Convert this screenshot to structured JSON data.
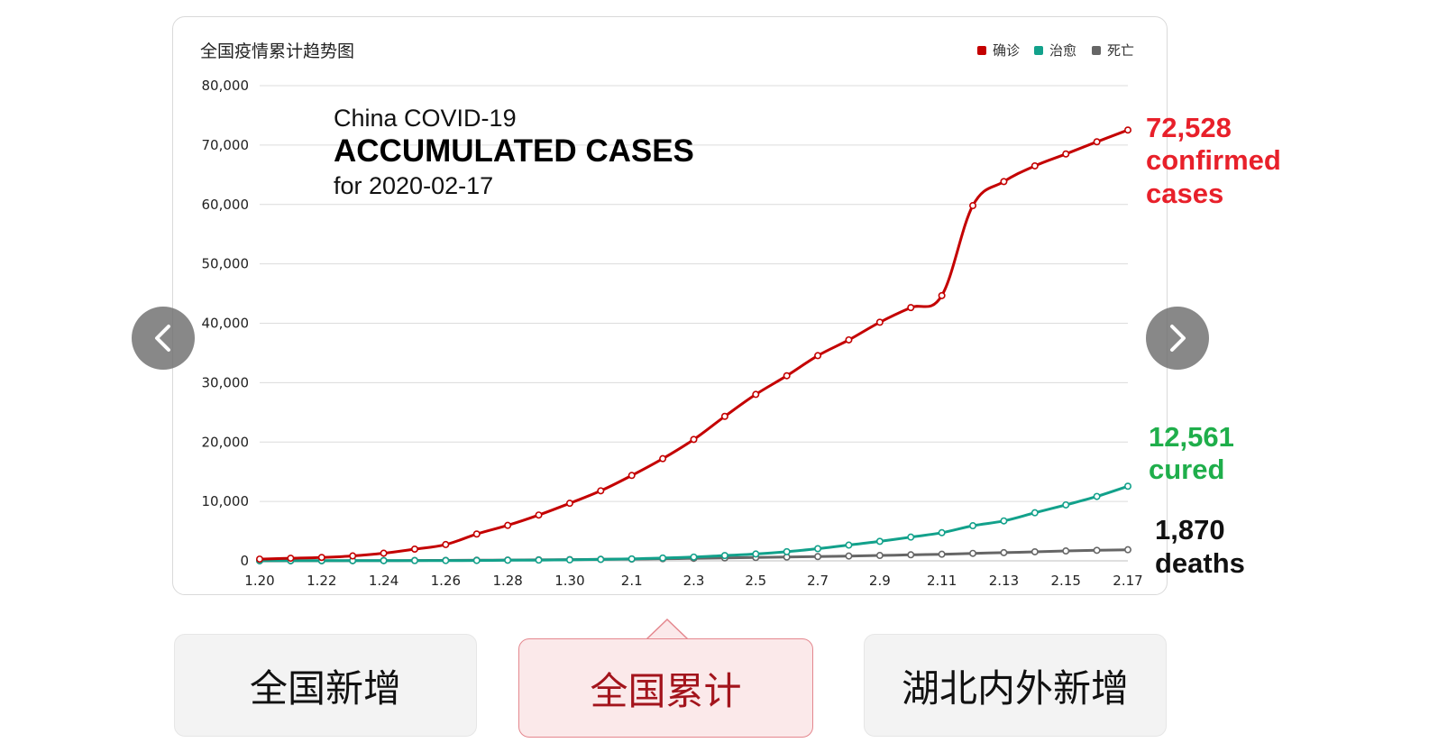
{
  "chart_data": {
    "type": "line",
    "title": "全国疫情累计趋势图",
    "overlay": {
      "line1": "China COVID-19",
      "line2": "ACCUMULATED CASES",
      "line3": "for 2020-02-17"
    },
    "x": [
      "1.20",
      "1.21",
      "1.22",
      "1.23",
      "1.24",
      "1.25",
      "1.26",
      "1.27",
      "1.28",
      "1.29",
      "1.30",
      "1.31",
      "2.1",
      "2.2",
      "2.3",
      "2.4",
      "2.5",
      "2.6",
      "2.7",
      "2.8",
      "2.9",
      "2.10",
      "2.11",
      "2.12",
      "2.13",
      "2.14",
      "2.15",
      "2.16",
      "2.17"
    ],
    "x_tick_labels": [
      "1.20",
      "1.22",
      "1.24",
      "1.26",
      "1.28",
      "1.30",
      "2.1",
      "2.3",
      "2.5",
      "2.7",
      "2.9",
      "2.11",
      "2.13",
      "2.15",
      "2.17"
    ],
    "y_tick_labels": [
      "0",
      "10,000",
      "20,000",
      "30,000",
      "40,000",
      "50,000",
      "60,000",
      "70,000",
      "80,000"
    ],
    "ylim": [
      0,
      80000
    ],
    "grid": true,
    "legend_position": "top-right",
    "series": [
      {
        "name": "确诊",
        "color": "#c40000",
        "values": [
          291,
          440,
          571,
          830,
          1287,
          1975,
          2744,
          4515,
          5974,
          7711,
          9692,
          11791,
          14380,
          17205,
          20438,
          24324,
          28018,
          31161,
          34546,
          37198,
          40171,
          42638,
          44653,
          59804,
          63851,
          66492,
          68500,
          70548,
          72528
        ]
      },
      {
        "name": "治愈",
        "color": "#12a18b",
        "values": [
          25,
          28,
          28,
          34,
          38,
          49,
          51,
          60,
          103,
          124,
          171,
          243,
          328,
          475,
          632,
          892,
          1153,
          1540,
          2050,
          2649,
          3281,
          3996,
          4740,
          5911,
          6723,
          8096,
          9419,
          10844,
          12561
        ]
      },
      {
        "name": "死亡",
        "color": "#666666",
        "values": [
          6,
          9,
          17,
          25,
          41,
          56,
          80,
          106,
          132,
          170,
          213,
          259,
          304,
          361,
          425,
          490,
          563,
          636,
          722,
          811,
          908,
          1016,
          1113,
          1259,
          1380,
          1523,
          1665,
          1770,
          1870
        ]
      }
    ],
    "callouts": {
      "confirmed": {
        "value": "72,528",
        "line2": "confirmed",
        "line3": "cases",
        "color": "#e8202a"
      },
      "cured": {
        "value": "12,561",
        "line2": "cured",
        "color": "#1fae4b"
      },
      "deaths": {
        "value": "1,870",
        "line2": "deaths",
        "color": "#111111"
      }
    }
  },
  "tabs": [
    {
      "label": "全国新增"
    },
    {
      "label": "全国累计"
    },
    {
      "label": "湖北内外新增"
    }
  ]
}
